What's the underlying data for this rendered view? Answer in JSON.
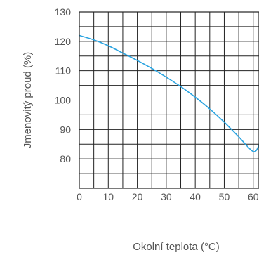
{
  "chart_data": {
    "type": "line",
    "title": "",
    "xlabel": "Okolní teplota (°C)",
    "ylabel": "Jmenovitý proud (%)",
    "xlim": [
      0,
      62
    ],
    "ylim": [
      70,
      130
    ],
    "x_ticks": [
      0,
      10,
      20,
      30,
      40,
      50,
      60
    ],
    "y_ticks": [
      80,
      90,
      100,
      110,
      120,
      130
    ],
    "grid": true,
    "series": [
      {
        "color": "#29a3e0",
        "x": [
          0,
          5,
          10,
          15,
          20,
          25,
          30,
          35,
          40,
          45,
          50,
          55,
          60,
          62
        ],
        "y": [
          122,
          120.5,
          118.5,
          116,
          113.5,
          110.8,
          107.8,
          104.6,
          101,
          97,
          92.5,
          87.5,
          82.5,
          84.6
        ]
      }
    ]
  }
}
